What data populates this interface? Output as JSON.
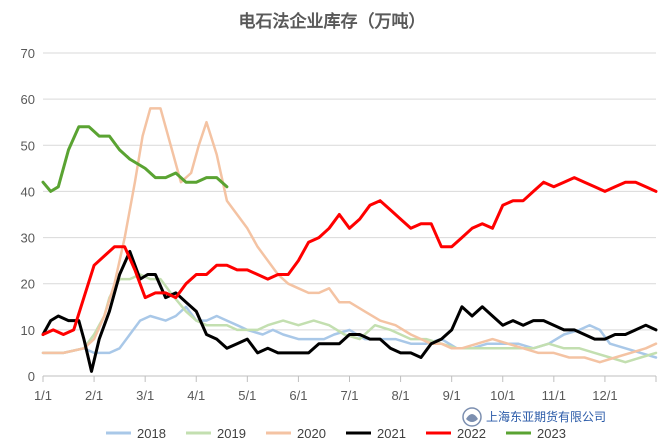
{
  "chart_data": {
    "type": "line",
    "title": "电石法企业库存（万吨）",
    "ylim": [
      0,
      70
    ],
    "yticks": [
      0,
      10,
      20,
      30,
      40,
      50,
      60,
      70
    ],
    "xlim": [
      0,
      12
    ],
    "xticks": [
      "1/1",
      "2/1",
      "3/1",
      "4/1",
      "5/1",
      "6/1",
      "7/1",
      "8/1",
      "9/1",
      "10/1",
      "11/1",
      "12/1"
    ],
    "grid": true,
    "legend_position": "bottom",
    "watermark": "上海东亚期货有限公司",
    "series": [
      {
        "name": "2018",
        "color": "#a9c8e8",
        "x": [
          0.0,
          0.4,
          0.8,
          1.0,
          1.3,
          1.5,
          1.7,
          1.9,
          2.1,
          2.4,
          2.6,
          2.8,
          3.0,
          3.2,
          3.4,
          3.6,
          3.8,
          4.0,
          4.3,
          4.5,
          4.7,
          5.0,
          5.3,
          5.5,
          5.7,
          6.0,
          6.3,
          6.6,
          6.9,
          7.2,
          7.5,
          7.8,
          8.1,
          8.4,
          8.7,
          9.0,
          9.3,
          9.6,
          9.9,
          10.2,
          10.5,
          10.7,
          10.9,
          11.1,
          11.4,
          11.7,
          12.0
        ],
        "y": [
          5,
          5,
          6,
          5,
          5,
          6,
          9,
          12,
          13,
          12,
          13,
          15,
          12,
          12,
          13,
          12,
          11,
          10,
          9,
          10,
          9,
          8,
          8,
          8,
          9,
          10,
          8,
          8,
          8,
          7,
          7,
          8,
          6,
          6,
          7,
          7,
          7,
          6,
          7,
          9,
          10,
          11,
          10,
          7,
          6,
          5,
          4
        ]
      },
      {
        "name": "2019",
        "color": "#c3dfb0",
        "x": [
          0.0,
          0.4,
          0.8,
          1.0,
          1.2,
          1.3,
          1.5,
          1.7,
          1.9,
          2.1,
          2.3,
          2.5,
          2.8,
          3.0,
          3.2,
          3.4,
          3.6,
          3.8,
          4.0,
          4.2,
          4.4,
          4.7,
          5.0,
          5.3,
          5.6,
          5.9,
          6.2,
          6.5,
          6.8,
          7.0,
          7.2,
          7.5,
          7.8,
          8.1,
          8.4,
          8.7,
          9.0,
          9.3,
          9.6,
          9.9,
          10.2,
          10.5,
          10.8,
          11.1,
          11.4,
          11.7,
          12.0
        ],
        "y": [
          5,
          5,
          6,
          9,
          13,
          17,
          21,
          21,
          22,
          21,
          21,
          18,
          14,
          12,
          11,
          11,
          11,
          10,
          10,
          10,
          11,
          12,
          11,
          12,
          11,
          9,
          8,
          11,
          10,
          9,
          8,
          8,
          7,
          6,
          6,
          6,
          6,
          6,
          6,
          7,
          6,
          6,
          5,
          4,
          3,
          4,
          5
        ]
      },
      {
        "name": "2020",
        "color": "#f4c3a3",
        "x": [
          0.0,
          0.4,
          0.8,
          1.0,
          1.2,
          1.4,
          1.6,
          1.8,
          1.95,
          2.1,
          2.3,
          2.5,
          2.7,
          2.9,
          3.05,
          3.2,
          3.4,
          3.6,
          3.8,
          4.0,
          4.2,
          4.4,
          4.6,
          4.8,
          5.0,
          5.2,
          5.4,
          5.6,
          5.8,
          6.0,
          6.3,
          6.6,
          6.9,
          7.2,
          7.4,
          7.6,
          7.8,
          8.0,
          8.2,
          8.5,
          8.8,
          9.1,
          9.4,
          9.7,
          10.0,
          10.3,
          10.6,
          10.9,
          11.2,
          11.5,
          11.8,
          12.0
        ],
        "y": [
          5,
          5,
          6,
          8,
          13,
          20,
          30,
          42,
          52,
          58,
          58,
          50,
          42,
          44,
          50,
          55,
          48,
          38,
          35,
          32,
          28,
          25,
          22,
          20,
          19,
          18,
          18,
          19,
          16,
          16,
          14,
          12,
          11,
          9,
          8,
          7,
          7,
          6,
          6,
          7,
          8,
          7,
          6,
          5,
          5,
          4,
          4,
          3,
          4,
          5,
          6,
          7
        ]
      },
      {
        "name": "2021",
        "color": "#000000",
        "x": [
          0.0,
          0.15,
          0.3,
          0.5,
          0.7,
          0.8,
          0.95,
          1.1,
          1.3,
          1.5,
          1.7,
          1.9,
          2.05,
          2.2,
          2.4,
          2.6,
          2.8,
          3.0,
          3.2,
          3.4,
          3.6,
          3.8,
          4.0,
          4.2,
          4.4,
          4.6,
          4.8,
          5.0,
          5.2,
          5.4,
          5.6,
          5.8,
          6.0,
          6.2,
          6.4,
          6.6,
          6.8,
          7.0,
          7.2,
          7.4,
          7.6,
          7.8,
          8.0,
          8.2,
          8.4,
          8.6,
          8.8,
          9.0,
          9.2,
          9.4,
          9.6,
          9.8,
          10.0,
          10.2,
          10.4,
          10.6,
          10.8,
          11.0,
          11.2,
          11.4,
          11.6,
          11.8,
          12.0
        ],
        "y": [
          9,
          12,
          13,
          12,
          12,
          8,
          1,
          8,
          14,
          22,
          27,
          21,
          22,
          22,
          17,
          18,
          16,
          14,
          9,
          8,
          6,
          7,
          8,
          5,
          6,
          5,
          5,
          5,
          5,
          7,
          7,
          7,
          9,
          9,
          8,
          8,
          6,
          5,
          5,
          4,
          7,
          8,
          10,
          15,
          13,
          15,
          13,
          11,
          12,
          11,
          12,
          12,
          11,
          10,
          10,
          9,
          8,
          8,
          9,
          9,
          10,
          11,
          10
        ]
      },
      {
        "name": "2022",
        "color": "#ff0000",
        "x": [
          0.0,
          0.2,
          0.4,
          0.6,
          0.8,
          1.0,
          1.2,
          1.4,
          1.6,
          1.8,
          2.0,
          2.2,
          2.4,
          2.6,
          2.8,
          3.0,
          3.2,
          3.4,
          3.6,
          3.8,
          4.0,
          4.2,
          4.4,
          4.6,
          4.8,
          5.0,
          5.2,
          5.4,
          5.6,
          5.8,
          6.0,
          6.2,
          6.4,
          6.6,
          6.8,
          7.0,
          7.2,
          7.4,
          7.6,
          7.8,
          8.0,
          8.2,
          8.4,
          8.6,
          8.8,
          9.0,
          9.2,
          9.4,
          9.6,
          9.8,
          10.0,
          10.2,
          10.4,
          10.6,
          10.8,
          11.0,
          11.2,
          11.4,
          11.6,
          11.8,
          12.0
        ],
        "y": [
          9,
          10,
          9,
          10,
          17,
          24,
          26,
          28,
          28,
          23,
          17,
          18,
          18,
          17,
          20,
          22,
          22,
          24,
          24,
          23,
          23,
          22,
          21,
          22,
          22,
          25,
          29,
          30,
          32,
          35,
          32,
          34,
          37,
          38,
          36,
          34,
          32,
          33,
          33,
          28,
          28,
          30,
          32,
          33,
          32,
          37,
          38,
          38,
          40,
          42,
          41,
          42,
          43,
          42,
          41,
          40,
          41,
          42,
          42,
          41,
          40
        ]
      },
      {
        "name": "2023",
        "color": "#5aa332",
        "x": [
          0.0,
          0.15,
          0.3,
          0.5,
          0.7,
          0.9,
          1.1,
          1.3,
          1.5,
          1.7,
          2.0,
          2.2,
          2.4,
          2.6,
          2.8,
          3.0,
          3.2,
          3.4,
          3.6
        ],
        "y": [
          42,
          40,
          41,
          49,
          54,
          54,
          52,
          52,
          49,
          47,
          45,
          43,
          43,
          44,
          42,
          42,
          43,
          43,
          41
        ]
      }
    ]
  }
}
